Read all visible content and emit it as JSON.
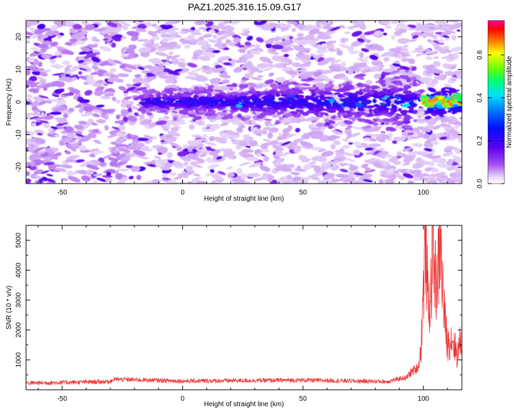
{
  "title": "PAZ1.2025.316.15.09.G17",
  "colors": {
    "snr_line": "#ee3333",
    "frame": "#000000",
    "background": "#ffffff"
  },
  "chart_data": [
    {
      "type": "heatmap",
      "name": "spectrogram",
      "xlabel": "Height of straight line (km)",
      "ylabel": "Frequency (Hz)",
      "xlim": [
        -65,
        116
      ],
      "ylim": [
        -25,
        25
      ],
      "xticks": [
        -50,
        0,
        50,
        100
      ],
      "yticks": [
        -20,
        -10,
        0,
        10,
        20
      ],
      "colorbar": {
        "label": "Normalized spectral amplitude",
        "range": [
          0.0,
          0.76
        ],
        "ticks": [
          0.0,
          0.2,
          0.4,
          0.6
        ],
        "tick_labels": [
          "0.0",
          "0.2",
          "0.4",
          "0.6"
        ],
        "colormap": "rainbow (white-violet-blue-cyan-green-yellow-red-magenta)"
      },
      "features": {
        "signal_band_center_hz": 0,
        "signal_onset_km": -17,
        "band_halfwidth_hz_at_onset": 3,
        "band_halfwidth_hz_at_95km": 8,
        "strong_signal_region_km": [
          97,
          116
        ],
        "peak_amplitude_region_km": [
          100,
          116
        ],
        "noise_floor_amplitude": 0.05
      }
    },
    {
      "type": "line",
      "name": "snr",
      "xlabel": "Height of straight line (km)",
      "ylabel": "SNR (10 * v/v)",
      "xlim": [
        -65,
        116
      ],
      "ylim": [
        0,
        5500
      ],
      "xticks": [
        -50,
        0,
        50,
        100
      ],
      "yticks": [
        1000,
        2000,
        3000,
        4000,
        5000
      ],
      "series": [
        {
          "name": "SNR",
          "x": [
            -65,
            -30,
            -29,
            0,
            50,
            85,
            93,
            95,
            97,
            98,
            99,
            100,
            101,
            102,
            103,
            104,
            105,
            106,
            107,
            108,
            109,
            110,
            112,
            114,
            116
          ],
          "y": [
            200,
            250,
            330,
            270,
            300,
            250,
            400,
            600,
            700,
            800,
            1400,
            3500,
            5500,
            2800,
            3200,
            5300,
            3800,
            4000,
            5300,
            3600,
            2300,
            1600,
            1800,
            1200,
            1900
          ]
        }
      ]
    }
  ]
}
